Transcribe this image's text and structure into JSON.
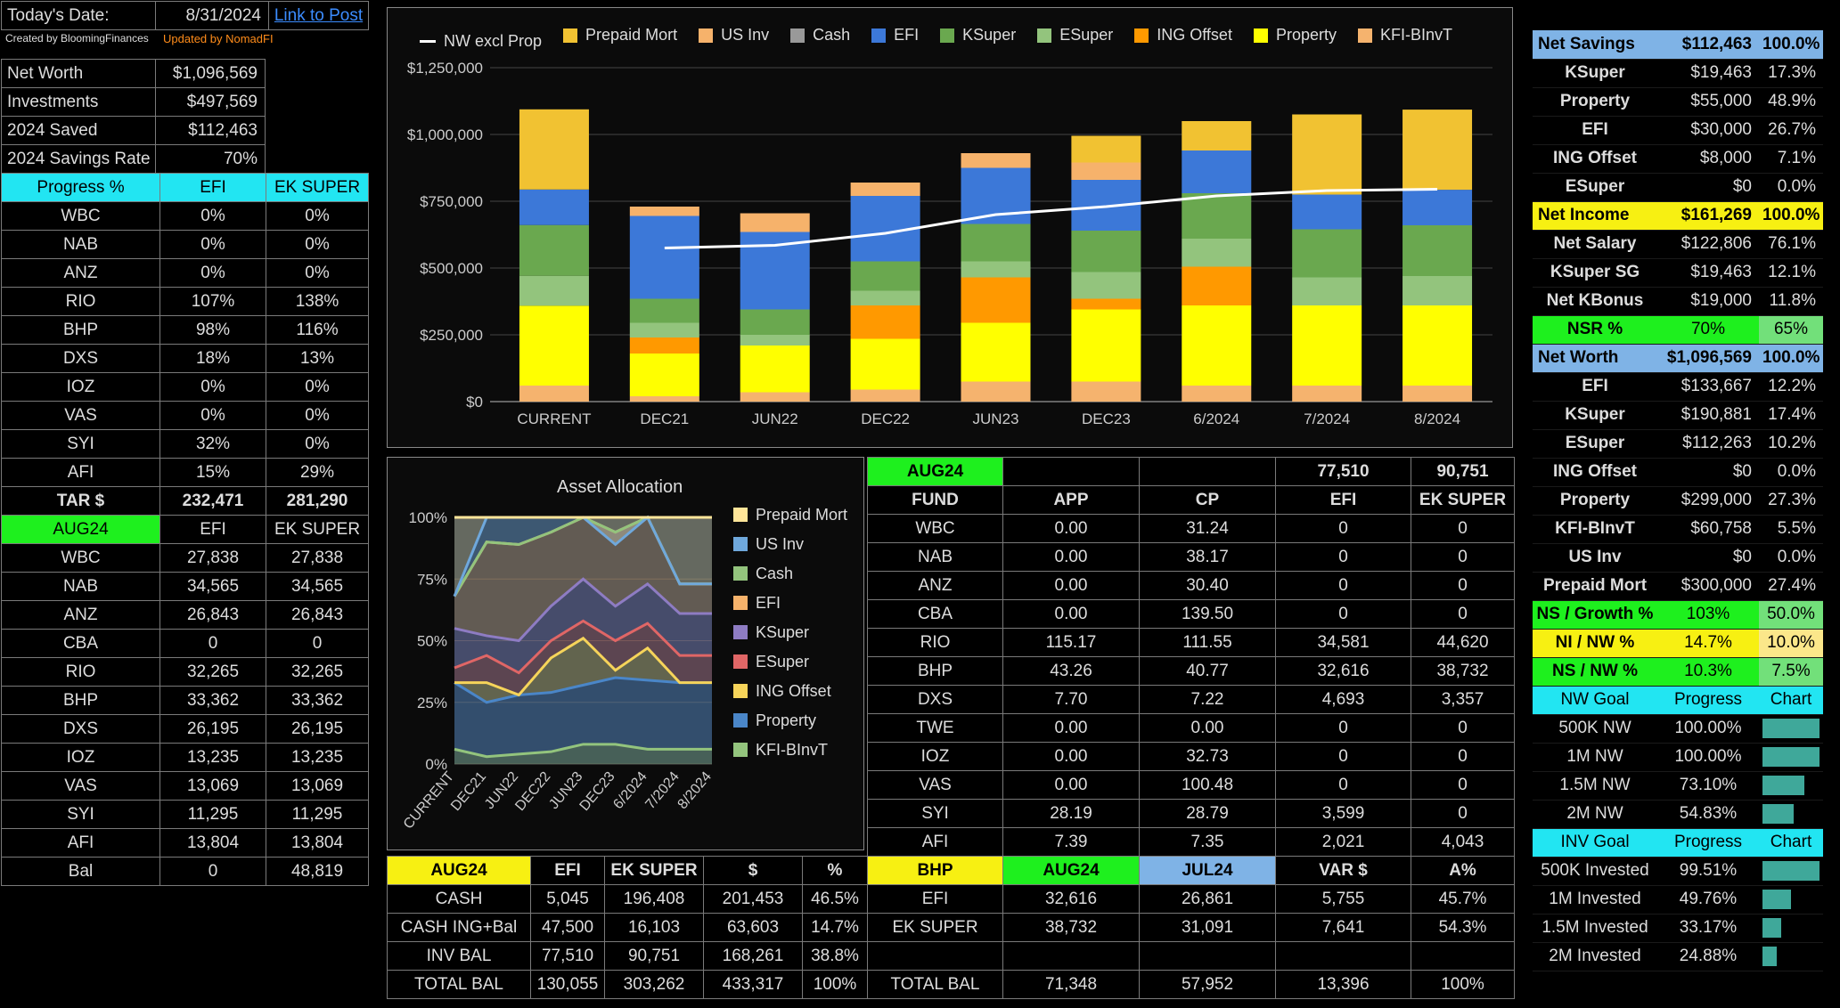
{
  "header": {
    "date_label": "Today's Date:",
    "date_value": "8/31/2024",
    "link": "Link to Post",
    "credit_left": "Created by BloomingFinances",
    "credit_right": "Updated by NomadFI"
  },
  "summary": [
    [
      "Net Worth",
      "$1,096,569"
    ],
    [
      "Investments",
      "$497,569"
    ],
    [
      "2024 Saved",
      "$112,463"
    ],
    [
      "2024 Savings Rate",
      "70%"
    ]
  ],
  "progress": {
    "headers": [
      "Progress %",
      "EFI",
      "EK SUPER"
    ],
    "rows": [
      [
        "WBC",
        "0%",
        "0%"
      ],
      [
        "NAB",
        "0%",
        "0%"
      ],
      [
        "ANZ",
        "0%",
        "0%"
      ],
      [
        "RIO",
        "107%",
        "138%"
      ],
      [
        "BHP",
        "98%",
        "116%"
      ],
      [
        "DXS",
        "18%",
        "13%"
      ],
      [
        "IOZ",
        "0%",
        "0%"
      ],
      [
        "VAS",
        "0%",
        "0%"
      ],
      [
        "SYI",
        "32%",
        "0%"
      ],
      [
        "AFI",
        "15%",
        "29%"
      ]
    ],
    "tar": [
      "TAR $",
      "232,471",
      "281,290"
    ]
  },
  "aug": {
    "headers": [
      "AUG24",
      "EFI",
      "EK SUPER"
    ],
    "rows": [
      [
        "WBC",
        "27,838",
        "27,838"
      ],
      [
        "NAB",
        "34,565",
        "34,565"
      ],
      [
        "ANZ",
        "26,843",
        "26,843"
      ],
      [
        "CBA",
        "0",
        "0"
      ],
      [
        "RIO",
        "32,265",
        "32,265"
      ],
      [
        "BHP",
        "33,362",
        "33,362"
      ],
      [
        "DXS",
        "26,195",
        "26,195"
      ],
      [
        "IOZ",
        "13,235",
        "13,235"
      ],
      [
        "VAS",
        "13,069",
        "13,069"
      ],
      [
        "SYI",
        "11,295",
        "11,295"
      ],
      [
        "AFI",
        "13,804",
        "13,804"
      ]
    ],
    "bal": [
      "Bal",
      "0",
      "48,819"
    ]
  },
  "chart_data": [
    {
      "type": "bar",
      "stacked": true,
      "categories": [
        "CURRENT",
        "DEC21",
        "JUN22",
        "DEC22",
        "JUN23",
        "DEC23",
        "6/2024",
        "7/2024",
        "8/2024"
      ],
      "yticks": [
        "$0",
        "$250,000",
        "$500,000",
        "$750,000",
        "$1,000,000",
        "$1,250,000"
      ],
      "ylim": [
        0,
        1250000
      ],
      "series": [
        {
          "name": "KFI-BInvT",
          "color": "#f5b36e",
          "values": [
            60000,
            20000,
            35000,
            45000,
            75000,
            75000,
            60000,
            60000,
            60000
          ]
        },
        {
          "name": "Property",
          "color": "#ffff00",
          "values": [
            299000,
            160000,
            175000,
            190000,
            220000,
            270000,
            300000,
            300000,
            300000
          ]
        },
        {
          "name": "ING Offset",
          "color": "#ff9900",
          "values": [
            0,
            60000,
            0,
            125000,
            170000,
            40000,
            145000,
            0,
            0
          ]
        },
        {
          "name": "ESuper",
          "color": "#93c47d",
          "values": [
            112000,
            55000,
            40000,
            55000,
            60000,
            100000,
            105000,
            105000,
            110000
          ]
        },
        {
          "name": "KSuper",
          "color": "#6aa84f",
          "values": [
            190000,
            90000,
            95000,
            110000,
            140000,
            155000,
            170000,
            180000,
            190000
          ]
        },
        {
          "name": "Cash",
          "color": "#999999",
          "values": [
            0,
            0,
            0,
            0,
            0,
            0,
            0,
            0,
            0
          ]
        },
        {
          "name": "EFI",
          "color": "#3c78d8",
          "values": [
            133000,
            310000,
            290000,
            245000,
            210000,
            190000,
            160000,
            130000,
            133000
          ]
        },
        {
          "name": "US Inv",
          "color": "#f6b26b",
          "values": [
            0,
            35000,
            70000,
            50000,
            55000,
            65000,
            0,
            0,
            0
          ]
        },
        {
          "name": "Prepaid Mort",
          "color": "#f1c232",
          "values": [
            300000,
            0,
            0,
            0,
            0,
            100000,
            110000,
            300000,
            300000
          ]
        }
      ],
      "line": {
        "name": "NW excl Prop",
        "color": "#ffffff",
        "values": [
          null,
          575000,
          585000,
          630000,
          700000,
          730000,
          770000,
          790000,
          795000
        ]
      },
      "legend": [
        "NW excl Prop",
        "Prepaid Mort",
        "US Inv",
        "Cash",
        "EFI",
        "KSuper",
        "ESuper",
        "ING Offset",
        "Property",
        "KFI-BInvT"
      ]
    },
    {
      "type": "area",
      "title": "Asset Allocation",
      "categories": [
        "CURRENT",
        "DEC21",
        "JUN22",
        "DEC22",
        "JUN23",
        "DEC23",
        "6/2024",
        "7/2024",
        "8/2024"
      ],
      "yticks": [
        "0%",
        "25%",
        "50%",
        "75%",
        "100%"
      ],
      "series": [
        {
          "name": "KFI-BInvT",
          "color": "#93c47d",
          "values": [
            6,
            3,
            4,
            5,
            8,
            8,
            6,
            6,
            6
          ]
        },
        {
          "name": "Property",
          "color": "#4a86c8",
          "values": [
            33,
            25,
            28,
            29,
            32,
            35,
            34,
            33,
            33
          ]
        },
        {
          "name": "ING Offset",
          "color": "#f6d45a",
          "values": [
            33,
            33,
            28,
            43,
            51,
            38,
            47,
            33,
            33
          ]
        },
        {
          "name": "ESuper",
          "color": "#e06666",
          "values": [
            39,
            44,
            37,
            50,
            58,
            50,
            57,
            44,
            44
          ]
        },
        {
          "name": "KSuper",
          "color": "#8e7cc3",
          "values": [
            55,
            52,
            50,
            64,
            75,
            64,
            73,
            61,
            61
          ]
        },
        {
          "name": "EFI",
          "color": "#f6b26b",
          "values": [
            68,
            90,
            89,
            94,
            100,
            94,
            100,
            73,
            73
          ]
        },
        {
          "name": "Cash",
          "color": "#93c47d",
          "values": [
            68,
            90,
            89,
            94,
            100,
            94,
            100,
            73,
            73
          ]
        },
        {
          "name": "US Inv",
          "color": "#6fa8dc",
          "values": [
            68,
            100,
            100,
            100,
            100,
            89,
            100,
            73,
            73
          ]
        },
        {
          "name": "Prepaid Mort",
          "color": "#ffe599",
          "values": [
            100,
            100,
            100,
            100,
            100,
            100,
            100,
            100,
            100
          ]
        }
      ],
      "legend": [
        "Prepaid Mort",
        "US Inv",
        "Cash",
        "EFI",
        "KSuper",
        "ESuper",
        "ING Offset",
        "Property",
        "KFI-BInvT"
      ]
    }
  ],
  "fund": {
    "top": [
      "AUG24",
      "",
      "",
      "77,510",
      "90,751"
    ],
    "headers": [
      "FUND",
      "APP",
      "CP",
      "EFI",
      "EK SUPER"
    ],
    "rows": [
      [
        "WBC",
        "0.00",
        "31.24",
        "0",
        "0"
      ],
      [
        "NAB",
        "0.00",
        "38.17",
        "0",
        "0"
      ],
      [
        "ANZ",
        "0.00",
        "30.40",
        "0",
        "0"
      ],
      [
        "CBA",
        "0.00",
        "139.50",
        "0",
        "0"
      ],
      [
        "RIO",
        "115.17",
        "111.55",
        "34,581",
        "44,620"
      ],
      [
        "BHP",
        "43.26",
        "40.77",
        "32,616",
        "38,732"
      ],
      [
        "DXS",
        "7.70",
        "7.22",
        "4,693",
        "3,357"
      ],
      [
        "TWE",
        "0.00",
        "0.00",
        "0",
        "0"
      ],
      [
        "IOZ",
        "0.00",
        "32.73",
        "0",
        "0"
      ],
      [
        "VAS",
        "0.00",
        "100.48",
        "0",
        "0"
      ],
      [
        "SYI",
        "28.19",
        "28.79",
        "3,599",
        "0"
      ],
      [
        "AFI",
        "7.39",
        "7.35",
        "2,021",
        "4,043"
      ]
    ]
  },
  "cash": {
    "headers": [
      "AUG24",
      "EFI",
      "EK SUPER",
      "$",
      "%"
    ],
    "rows": [
      [
        "CASH",
        "5,045",
        "196,408",
        "201,453",
        "46.5%"
      ],
      [
        "CASH ING+Bal",
        "47,500",
        "16,103",
        "63,603",
        "14.7%"
      ],
      [
        "INV BAL",
        "77,510",
        "90,751",
        "168,261",
        "38.8%"
      ],
      [
        "TOTAL BAL",
        "130,055",
        "303,262",
        "433,317",
        "100%"
      ]
    ]
  },
  "bhp": {
    "headers": [
      "BHP",
      "AUG24",
      "JUL24",
      "VAR $",
      "A%"
    ],
    "rows": [
      [
        "EFI",
        "32,616",
        "26,861",
        "5,755",
        "45.7%"
      ],
      [
        "EK SUPER",
        "38,732",
        "31,091",
        "7,641",
        "54.3%"
      ],
      [
        "",
        "",
        "",
        "",
        ""
      ],
      [
        "TOTAL BAL",
        "71,348",
        "57,952",
        "13,396",
        "100%"
      ]
    ]
  },
  "right": {
    "savings": {
      "head": [
        "Net Savings",
        "$112,463",
        "100.0%"
      ],
      "rows": [
        [
          "KSuper",
          "$19,463",
          "17.3%"
        ],
        [
          "Property",
          "$55,000",
          "48.9%"
        ],
        [
          "EFI",
          "$30,000",
          "26.7%"
        ],
        [
          "ING Offset",
          "$8,000",
          "7.1%"
        ],
        [
          "ESuper",
          "$0",
          "0.0%"
        ]
      ]
    },
    "income": {
      "head": [
        "Net Income",
        "$161,269",
        "100.0%"
      ],
      "rows": [
        [
          "Net Salary",
          "$122,806",
          "76.1%"
        ],
        [
          "KSuper SG",
          "$19,463",
          "12.1%"
        ],
        [
          "Net KBonus",
          "$19,000",
          "11.8%"
        ]
      ]
    },
    "nsr": [
      "NSR %",
      "70%",
      "65%"
    ],
    "networth": {
      "head": [
        "Net Worth",
        "$1,096,569",
        "100.0%"
      ],
      "rows": [
        [
          "EFI",
          "$133,667",
          "12.2%"
        ],
        [
          "KSuper",
          "$190,881",
          "17.4%"
        ],
        [
          "ESuper",
          "$112,263",
          "10.2%"
        ],
        [
          "ING Offset",
          "$0",
          "0.0%"
        ],
        [
          "Property",
          "$299,000",
          "27.3%"
        ],
        [
          "KFI-BInvT",
          "$60,758",
          "5.5%"
        ],
        [
          "US Inv",
          "$0",
          "0.0%"
        ],
        [
          "Prepaid Mort",
          "$300,000",
          "27.4%"
        ]
      ]
    },
    "ratios": [
      [
        "NS / Growth %",
        "103%",
        "50.0%"
      ],
      [
        "NI / NW %",
        "14.7%",
        "10.0%"
      ],
      [
        "NS / NW %",
        "10.3%",
        "7.5%"
      ]
    ],
    "nwgoal": {
      "head": [
        "NW Goal",
        "Progress",
        "Chart"
      ],
      "rows": [
        [
          "500K NW",
          "100.00%",
          1.0
        ],
        [
          "1M NW",
          "100.00%",
          1.0
        ],
        [
          "1.5M NW",
          "73.10%",
          0.731
        ],
        [
          "2M NW",
          "54.83%",
          0.5483
        ]
      ]
    },
    "invgoal": {
      "head": [
        "INV Goal",
        "Progress",
        "Chart"
      ],
      "rows": [
        [
          "500K Invested",
          "99.51%",
          0.9951
        ],
        [
          "1M Invested",
          "49.76%",
          0.4976
        ],
        [
          "1.5M Invested",
          "33.17%",
          0.3317
        ],
        [
          "2M Invested",
          "24.88%",
          0.2488
        ]
      ]
    }
  }
}
